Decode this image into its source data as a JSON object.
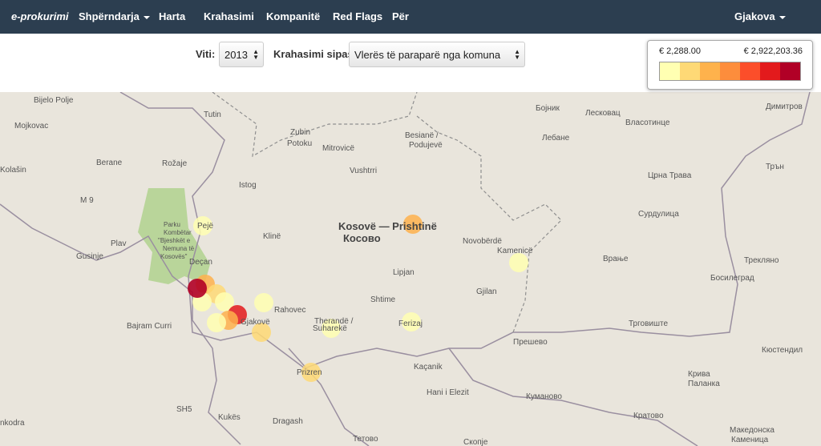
{
  "nav": {
    "brand": "e-prokurimi",
    "items": [
      "Shpërndarja",
      "Harta",
      "Krahasimi",
      "Kompanitë",
      "Red Flags",
      "Për"
    ],
    "user": "Gjakova"
  },
  "filters": {
    "year_label": "Viti:",
    "year": "2013",
    "compare_label": "Krahasimi sipas:",
    "compare": "Vlerës të paraparë nga komuna"
  },
  "legend": {
    "min": "€ 2,288.00",
    "max": "€ 2,922,203.36",
    "colors": [
      "#ffffb2",
      "#fed976",
      "#feb24c",
      "#fd8d3c",
      "#fc4e2a",
      "#e31a1c",
      "#b10026"
    ]
  },
  "map": {
    "labels": [
      "Bijelo Polje",
      "Tutin",
      "Mojkovac",
      "Zubin",
      "Potoku",
      "Mitrovicë",
      "Besianë /",
      "Podujevë",
      "Berane",
      "Rožaje",
      "Kolašin",
      "Vushtrri",
      "Istog",
      "M 9",
      "Pejë",
      "Klinë",
      "Kosovë — Prishtinë",
      "Косово",
      "Plav",
      "Gusinje",
      "Novobërdë",
      "Kamenicë",
      "Deçan",
      "Lipjan",
      "Gjilan",
      "Shtime",
      "Rahovec",
      "Bajram Curri",
      "Therandë /",
      "Suharekë",
      "Ferizaj",
      "Kaçanik",
      "Prizren",
      "Hani i Elezit",
      "Kukës",
      "Dragash",
      "nkodra",
      "SH5",
      "Тетово",
      "Скопје",
      "Бојник",
      "Лесковац",
      "Власотинце",
      "Лебане",
      "Димитров",
      "Црна Трава",
      "Трън",
      "Сурдулица",
      "Врање",
      "Трекляно",
      "Босилеград",
      "Прешево",
      "Трговиште",
      "Кюстендил",
      "Крива",
      "Паланка",
      "Куманово",
      "Кратово",
      "Македонска",
      "Каменица",
      "Parku",
      "Kombëtar",
      "\"Bjeshkët e",
      "Nemuna të",
      "Kosovës\"",
      "Gjakovë"
    ]
  }
}
